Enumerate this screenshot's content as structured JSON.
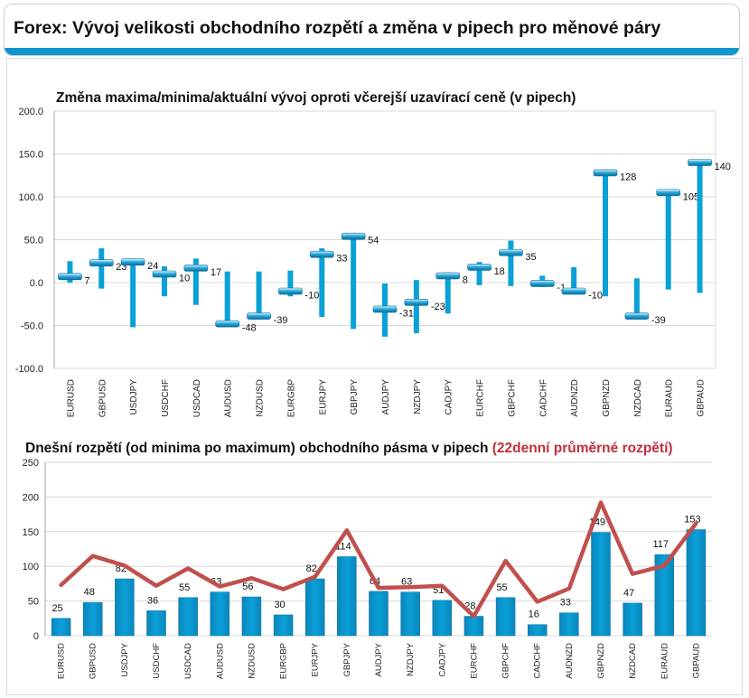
{
  "header": {
    "title": "Forex: Vývoj velikosti obchodního rozpětí a změna v pipech pro měnové páry",
    "band_color": "#0f95cf"
  },
  "chart_data": [
    {
      "type": "bar",
      "subtype": "high-low-current",
      "title": "Změna maxima/minima/aktuální vývoj oproti včerejší uzavírací ceně (v pipech)",
      "categories": [
        "EURUSD",
        "GBPUSD",
        "USDJPY",
        "USDCHF",
        "USDCAD",
        "AUDUSD",
        "NZDUSD",
        "EURGBP",
        "EURJPY",
        "GBPJPY",
        "AUDJPY",
        "NZDJPY",
        "CADJPY",
        "EURCHF",
        "GBPCHF",
        "CADCHF",
        "AUDNZD",
        "GBPNZD",
        "NZDCAD",
        "EURAUD",
        "GBPAUD"
      ],
      "current": [
        7,
        23,
        24,
        10,
        17,
        -48,
        -39,
        -10,
        33,
        54,
        -31,
        -23,
        8,
        18,
        35,
        -1,
        -10,
        128,
        -39,
        105,
        140
      ],
      "high": [
        25,
        40,
        28,
        19,
        28,
        13,
        13,
        14,
        40,
        58,
        -1,
        3,
        12,
        24,
        49,
        8,
        18,
        132,
        5,
        109,
        142
      ],
      "low": [
        0,
        -7,
        -52,
        -16,
        -26,
        -50,
        -42,
        -16,
        -40,
        -54,
        -63,
        -59,
        -36,
        -3,
        -4,
        -5,
        -12,
        -16,
        -41,
        -8,
        -12
      ],
      "value_labels": [
        "7",
        "23",
        "24",
        "10",
        "17",
        "-48",
        "-39",
        "-10",
        "33",
        "54",
        "-31",
        "-23",
        "8",
        "18",
        "35",
        "-1",
        "-10",
        "128",
        "-39",
        "105",
        "140"
      ],
      "ylim": [
        -100,
        200
      ],
      "yticks": [
        "200.0",
        "150.0",
        "100.0",
        "50.0",
        "0.0",
        "-50.0",
        "-100.0"
      ],
      "grid": true,
      "colors": {
        "bar": "#0aa0d8",
        "marker": "#27a9de"
      }
    },
    {
      "type": "bar",
      "title_main": "Dnešní rozpětí (od minima po maximum) obchodního pásma v pipech",
      "title_highlight": "(22denní průměrné rozpětí)",
      "categories": [
        "EURUSD",
        "GBPUSD",
        "USDJPY",
        "USDCHF",
        "USDCAD",
        "AUDUSD",
        "NZDUSD",
        "EURGBP",
        "EURJPY",
        "GBPJPY",
        "AUDJPY",
        "NZDJPY",
        "CADJPY",
        "EURCHF",
        "GBPCHF",
        "CADCHF",
        "AUDNZD",
        "GBPNZD",
        "NZDCAD",
        "EURAUD",
        "GBPAUD"
      ],
      "series": [
        {
          "values": [
            25,
            48,
            82,
            36,
            55,
            63,
            56,
            30,
            82,
            114,
            64,
            63,
            51,
            28,
            55,
            16,
            33,
            149,
            47,
            117,
            153
          ]
        },
        {
          "values": [
            73,
            115,
            101,
            72,
            97,
            71,
            83,
            67,
            85,
            152,
            69,
            70,
            72,
            28,
            108,
            49,
            68,
            192,
            89,
            101,
            162
          ]
        }
      ],
      "value_labels": [
        "25",
        "48",
        "82",
        "36",
        "55",
        "63",
        "56",
        "30",
        "82",
        "114",
        "64",
        "63",
        "51",
        "28",
        "55",
        "16",
        "33",
        "149",
        "47",
        "117",
        "153"
      ],
      "ylim": [
        0,
        250
      ],
      "yticks": [
        "250",
        "200",
        "150",
        "100",
        "50",
        "0"
      ],
      "grid": true,
      "colors": {
        "bar": "#0aa0d8",
        "line": "#c0504d",
        "highlight_text": "#c0303a"
      }
    }
  ]
}
